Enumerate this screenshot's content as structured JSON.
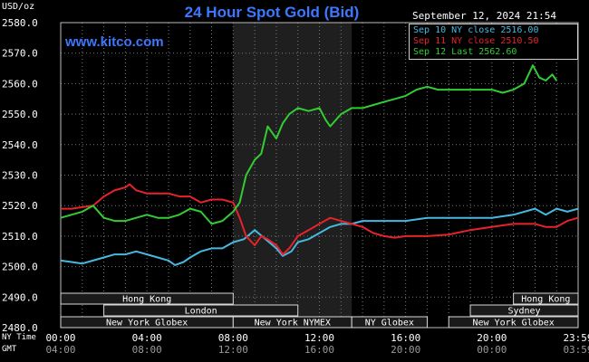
{
  "header": {
    "title": "24 Hour Spot Gold (Bid)",
    "site": "www.kitco.com",
    "unit": "USD/oz",
    "timestamp": "September 12, 2024 21:54"
  },
  "legend": [
    {
      "label": "Sep 10 NY close 2516.00",
      "color": "#47b8e0"
    },
    {
      "label": "Sep 11 NY close 2510.50",
      "color": "#e8222a"
    },
    {
      "label": "Sep 12 Last 2562.60",
      "color": "#33cc33"
    }
  ],
  "timezones": {
    "ny_label": "NY Time",
    "gmt_label": "GMT"
  },
  "colors": {
    "gold_line": "#33cc33",
    "sep10": "#47b8e0",
    "sep11": "#e8222a",
    "grid": "#7a7a7a",
    "shade": "#1f1f1f",
    "session_fill": "#1a1a1a"
  },
  "chart_data": {
    "type": "line",
    "title": "24 Hour Spot Gold (Bid)",
    "ylabel": "USD/oz",
    "ylim": [
      2480,
      2580
    ],
    "yticks": [
      "2580.0",
      "2570.0",
      "2560.0",
      "2550.0",
      "2540.0",
      "2530.0",
      "2520.0",
      "2510.0",
      "2500.0",
      "2490.0",
      "2480.0"
    ],
    "xlim": [
      0,
      24
    ],
    "xticks_ny": [
      "00:00",
      "04:00",
      "08:00",
      "12:00",
      "16:00",
      "20:00",
      "23:59"
    ],
    "xticks_gmt": [
      "04:00",
      "08:00",
      "12:00",
      "16:00",
      "20:00",
      "00:00",
      "03:59"
    ],
    "grid": true,
    "legend_position": "top-right",
    "x_unit": "NY time (hours)",
    "series": [
      {
        "name": "Sep 10 NY close 2516.00",
        "color": "#47b8e0",
        "points": [
          [
            0,
            2502
          ],
          [
            0.5,
            2501.5
          ],
          [
            1,
            2501
          ],
          [
            1.5,
            2502
          ],
          [
            2,
            2503
          ],
          [
            2.5,
            2504
          ],
          [
            3,
            2504
          ],
          [
            3.5,
            2505
          ],
          [
            4,
            2504
          ],
          [
            4.5,
            2503
          ],
          [
            5,
            2502
          ],
          [
            5.3,
            2500.5
          ],
          [
            5.7,
            2501.5
          ],
          [
            6,
            2503
          ],
          [
            6.5,
            2505
          ],
          [
            7,
            2506
          ],
          [
            7.5,
            2506
          ],
          [
            8,
            2508
          ],
          [
            8.5,
            2509
          ],
          [
            9,
            2512
          ],
          [
            9.5,
            2509
          ],
          [
            10,
            2506
          ],
          [
            10.3,
            2503.5
          ],
          [
            10.7,
            2505
          ],
          [
            11,
            2508
          ],
          [
            11.5,
            2509
          ],
          [
            12,
            2511
          ],
          [
            12.5,
            2513
          ],
          [
            13,
            2514
          ],
          [
            13.5,
            2514
          ],
          [
            14,
            2515
          ],
          [
            15,
            2515
          ],
          [
            16,
            2515
          ],
          [
            17,
            2516
          ],
          [
            18,
            2516
          ],
          [
            19,
            2516
          ],
          [
            20,
            2516
          ],
          [
            21,
            2517
          ],
          [
            22,
            2519
          ],
          [
            22.5,
            2517
          ],
          [
            23,
            2519
          ],
          [
            23.5,
            2518
          ],
          [
            24,
            2519
          ]
        ]
      },
      {
        "name": "Sep 11 NY close 2510.50",
        "color": "#e8222a",
        "points": [
          [
            0,
            2519
          ],
          [
            0.5,
            2519
          ],
          [
            1,
            2519.5
          ],
          [
            1.5,
            2520
          ],
          [
            2,
            2523
          ],
          [
            2.5,
            2525
          ],
          [
            3,
            2526
          ],
          [
            3.2,
            2527
          ],
          [
            3.5,
            2525
          ],
          [
            4,
            2524
          ],
          [
            4.5,
            2524
          ],
          [
            5,
            2524
          ],
          [
            5.5,
            2523
          ],
          [
            6,
            2523
          ],
          [
            6.5,
            2521
          ],
          [
            7,
            2522
          ],
          [
            7.5,
            2522
          ],
          [
            8,
            2521
          ],
          [
            8.3,
            2516
          ],
          [
            8.6,
            2510
          ],
          [
            9,
            2507
          ],
          [
            9.3,
            2510
          ],
          [
            9.6,
            2509
          ],
          [
            10,
            2507
          ],
          [
            10.3,
            2504
          ],
          [
            10.6,
            2506
          ],
          [
            11,
            2510
          ],
          [
            11.5,
            2512
          ],
          [
            12,
            2514
          ],
          [
            12.5,
            2516
          ],
          [
            13,
            2515
          ],
          [
            13.5,
            2514
          ],
          [
            14,
            2513
          ],
          [
            14.5,
            2511
          ],
          [
            15,
            2510
          ],
          [
            15.5,
            2509.5
          ],
          [
            16,
            2510
          ],
          [
            17,
            2510
          ],
          [
            18,
            2510.5
          ],
          [
            19,
            2512
          ],
          [
            20,
            2513
          ],
          [
            21,
            2514
          ],
          [
            22,
            2514
          ],
          [
            22.5,
            2513
          ],
          [
            23,
            2513
          ],
          [
            23.5,
            2515
          ],
          [
            24,
            2516
          ]
        ]
      },
      {
        "name": "Sep 12 Last 2562.60",
        "color": "#33cc33",
        "points": [
          [
            0,
            2516
          ],
          [
            0.5,
            2517
          ],
          [
            1,
            2518
          ],
          [
            1.5,
            2520
          ],
          [
            2,
            2516
          ],
          [
            2.5,
            2515
          ],
          [
            3,
            2515
          ],
          [
            3.5,
            2516
          ],
          [
            4,
            2517
          ],
          [
            4.5,
            2516
          ],
          [
            5,
            2516
          ],
          [
            5.5,
            2517
          ],
          [
            6,
            2519
          ],
          [
            6.5,
            2518
          ],
          [
            7,
            2514
          ],
          [
            7.5,
            2515
          ],
          [
            8,
            2518
          ],
          [
            8.3,
            2521
          ],
          [
            8.6,
            2530
          ],
          [
            9,
            2535
          ],
          [
            9.3,
            2537
          ],
          [
            9.6,
            2546
          ],
          [
            10,
            2542
          ],
          [
            10.3,
            2547
          ],
          [
            10.6,
            2550
          ],
          [
            11,
            2552
          ],
          [
            11.5,
            2551
          ],
          [
            12,
            2552
          ],
          [
            12.3,
            2548
          ],
          [
            12.5,
            2546
          ],
          [
            13,
            2550
          ],
          [
            13.5,
            2552
          ],
          [
            14,
            2552
          ],
          [
            14.5,
            2553
          ],
          [
            15,
            2554
          ],
          [
            15.5,
            2555
          ],
          [
            16,
            2556
          ],
          [
            16.5,
            2558
          ],
          [
            17,
            2559
          ],
          [
            17.5,
            2558
          ],
          [
            18,
            2558
          ],
          [
            19,
            2558
          ],
          [
            20,
            2558
          ],
          [
            20.5,
            2557
          ],
          [
            21,
            2558
          ],
          [
            21.5,
            2560
          ],
          [
            21.9,
            2566
          ],
          [
            22.2,
            2562
          ],
          [
            22.5,
            2561
          ],
          [
            22.8,
            2563
          ],
          [
            23,
            2561
          ]
        ]
      }
    ]
  },
  "sessions": [
    {
      "name": "Hong Kong",
      "start": 0,
      "end": 8,
      "row": 0
    },
    {
      "name": "London",
      "start": 2,
      "end": 11,
      "row": 1
    },
    {
      "name": "New York Globex",
      "start": 0,
      "end": 8,
      "row": 2
    },
    {
      "name": "New York NYMEX",
      "start": 8,
      "end": 13.5,
      "row": 2
    },
    {
      "name": "NY Globex",
      "start": 13.5,
      "end": 17,
      "row": 2
    },
    {
      "name": "Hong Kong",
      "start": 21,
      "end": 24,
      "row": 0
    },
    {
      "name": "Sydney",
      "start": 19,
      "end": 24,
      "row": 1
    },
    {
      "name": "New York Globex",
      "start": 18,
      "end": 24,
      "row": 2
    }
  ]
}
